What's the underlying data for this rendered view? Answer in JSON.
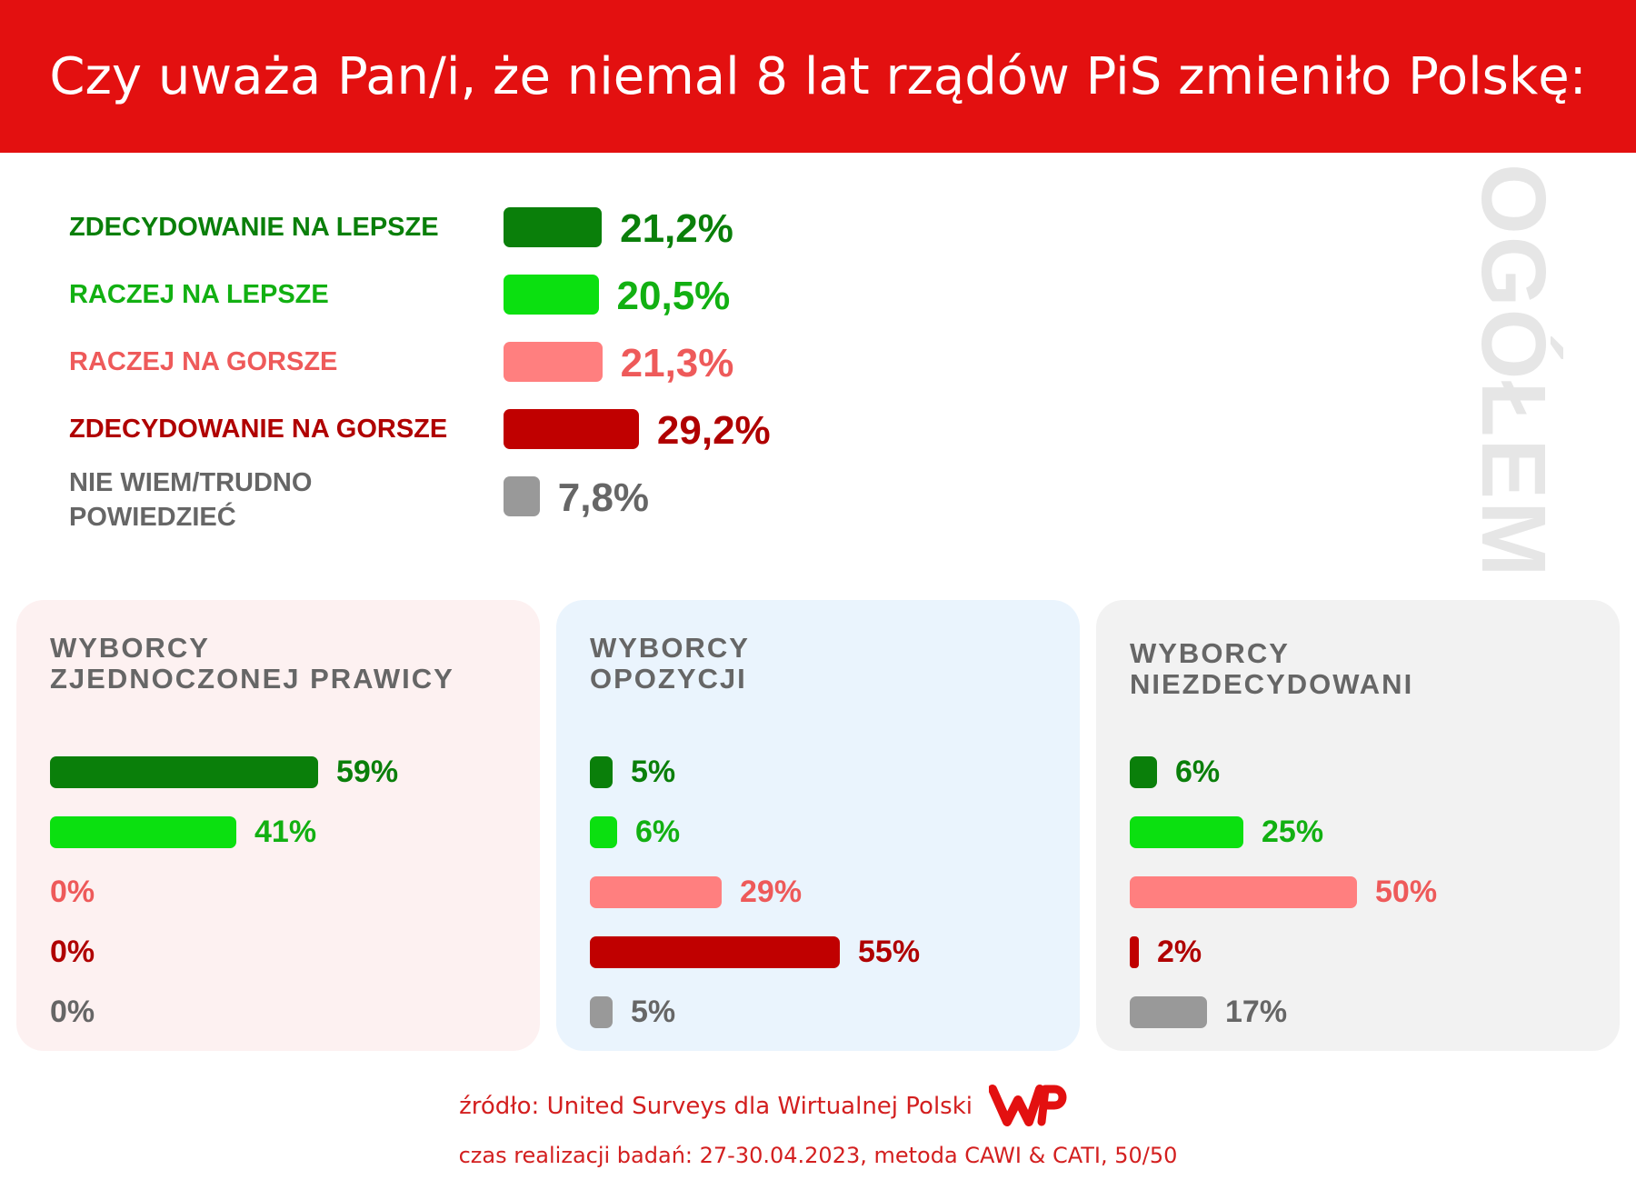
{
  "title": "Czy uważa Pan/i, że niemal 8 lat rządów PiS zmieniło Polskę:",
  "side_label": "OGÓŁEM",
  "colors": {
    "header": "#e31010",
    "strong_better": "#0a7f0a",
    "better": "#0be010",
    "worse": "#ff7f7f",
    "strong_worse": "#c00000",
    "dont_know": "#999999",
    "strong_better_text": "#0a7f0a",
    "better_text": "#12b012",
    "worse_text": "#ee5a5a",
    "strong_worse_text": "#b00000",
    "dont_know_text": "#666666"
  },
  "chart_data": [
    {
      "type": "bar",
      "orientation": "horizontal",
      "group": "OGÓŁEM",
      "categories": [
        "ZDECYDOWANIE NA LEPSZE",
        "RACZEJ NA LEPSZE",
        "RACZEJ NA GORSZE",
        "ZDECYDOWANIE NA GORSZE",
        "NIE WIEM/TRUDNO POWIEDZIEĆ"
      ],
      "values": [
        21.2,
        20.5,
        21.3,
        29.2,
        7.8
      ],
      "labels": [
        "21,2%",
        "20,5%",
        "21,3%",
        "29,2%",
        "7,8%"
      ]
    },
    {
      "type": "bar",
      "orientation": "horizontal",
      "title": "WYBORCY ZJEDNOCZONEJ PRAWICY",
      "title_lines": [
        "WYBORCY",
        "ZJEDNOCZONEJ PRAWICY"
      ],
      "categories": [
        "ZDECYDOWANIE NA LEPSZE",
        "RACZEJ NA LEPSZE",
        "RACZEJ NA GORSZE",
        "ZDECYDOWANIE NA GORSZE",
        "NIE WIEM/TRUDNO POWIEDZIEĆ"
      ],
      "values": [
        59,
        41,
        0,
        0,
        0
      ],
      "labels": [
        "59%",
        "41%",
        "0%",
        "0%",
        "0%"
      ],
      "background": "#fdf1f1"
    },
    {
      "type": "bar",
      "orientation": "horizontal",
      "title": "WYBORCY OPOZYCJI",
      "title_lines": [
        "WYBORCY",
        "OPOZYCJI"
      ],
      "categories": [
        "ZDECYDOWANIE NA LEPSZE",
        "RACZEJ NA LEPSZE",
        "RACZEJ NA GORSZE",
        "ZDECYDOWANIE NA GORSZE",
        "NIE WIEM/TRUDNO POWIEDZIEĆ"
      ],
      "values": [
        5,
        6,
        29,
        55,
        5
      ],
      "labels": [
        "5%",
        "6%",
        "29%",
        "55%",
        "5%"
      ],
      "background": "#eaf4fd"
    },
    {
      "type": "bar",
      "orientation": "horizontal",
      "title": "WYBORCY NIEZDECYDOWANI",
      "title_lines": [
        "WYBORCY",
        "NIEZDECYDOWANI"
      ],
      "categories": [
        "ZDECYDOWANIE NA LEPSZE",
        "RACZEJ NA LEPSZE",
        "RACZEJ NA GORSZE",
        "ZDECYDOWANIE NA GORSZE",
        "NIE WIEM/TRUDNO POWIEDZIEĆ"
      ],
      "values": [
        6,
        25,
        50,
        2,
        17
      ],
      "labels": [
        "6%",
        "25%",
        "50%",
        "2%",
        "17%"
      ],
      "background": "#f2f2f2"
    }
  ],
  "footer": {
    "source": "źródło: United Surveys dla Wirtualnej Polski",
    "time": "czas realizacji badań: 27-30.04.2023, metoda CAWI & CATI, 50/50",
    "logo": "wp-logo",
    "logo_color": "#e31010"
  }
}
